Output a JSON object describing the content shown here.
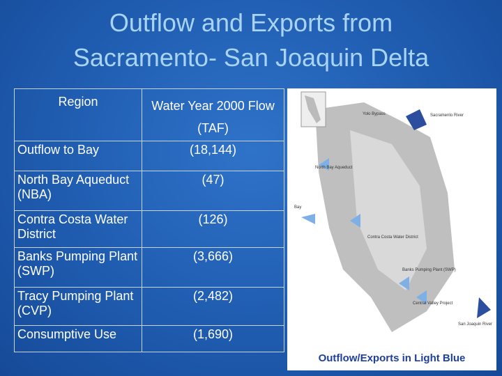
{
  "header": {
    "title_lines": [
      "Outflow and Exports from",
      "Sacramento- San Joaquin Delta"
    ]
  },
  "table": {
    "columns": [
      "Region",
      "Water Year 2000 Flow (TAF)"
    ],
    "rows": [
      [
        "Outflow to Bay",
        "(18,144)"
      ],
      [
        "North Bay Aqueduct (NBA)",
        "(47)"
      ],
      [
        "Contra Costa Water District",
        "(126)"
      ],
      [
        "Banks Pumping Plant (SWP)",
        "(3,666)"
      ],
      [
        "Tracy Pumping Plant (CVP)",
        "(2,482)"
      ],
      [
        "Consumptive Use",
        "(1,690)"
      ]
    ]
  },
  "map": {
    "labels": [
      "Sacramento River",
      "Yolo Bypass",
      "North Bay Aqueduct",
      "Bay",
      "Contra Costa Water District",
      "Banks Pumping Plant (SWP)",
      "Central Valley Project",
      "San Joaquin River"
    ],
    "caption": "Outflow/Exports in Light Blue"
  }
}
